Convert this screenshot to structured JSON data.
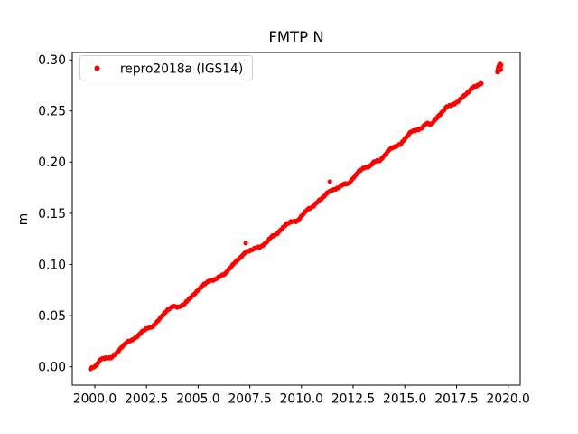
{
  "figure": {
    "background": "#ffffff",
    "text_color": "#000000"
  },
  "chart_data": {
    "type": "scatter",
    "title": "FMTP N",
    "xlabel": "",
    "ylabel": "m",
    "grid": false,
    "xlim": [
      1998.908,
      2020.583
    ],
    "ylim": [
      -0.0179,
      0.3072
    ],
    "x_ticks": [
      2000.0,
      2002.5,
      2005.0,
      2007.5,
      2010.0,
      2012.5,
      2015.0,
      2017.5,
      2020.0
    ],
    "x_tick_labels": [
      "2000.0",
      "2002.5",
      "2005.0",
      "2007.5",
      "2010.0",
      "2012.5",
      "2015.0",
      "2017.5",
      "2020.0"
    ],
    "y_ticks": [
      0.0,
      0.05,
      0.1,
      0.15,
      0.2,
      0.25,
      0.3
    ],
    "y_tick_labels": [
      "0.00",
      "0.05",
      "0.10",
      "0.15",
      "0.20",
      "0.25",
      "0.30"
    ],
    "legend": {
      "position": "upper left"
    },
    "series": [
      {
        "name": "repro2018a (IGS14)",
        "color": "#ff0000",
        "marker": "dot",
        "points": [
          [
            1999.79,
            -0.002
          ],
          [
            2000.04,
            0.001
          ],
          [
            2000.29,
            0.0073
          ],
          [
            2000.54,
            0.009
          ],
          [
            2000.79,
            0.0087
          ],
          [
            2001.04,
            0.0133
          ],
          [
            2001.29,
            0.019
          ],
          [
            2001.54,
            0.0237
          ],
          [
            2001.79,
            0.0264
          ],
          [
            2002.04,
            0.0291
          ],
          [
            2002.29,
            0.0348
          ],
          [
            2002.54,
            0.0375
          ],
          [
            2002.79,
            0.0392
          ],
          [
            2003.04,
            0.0448
          ],
          [
            2003.29,
            0.0505
          ],
          [
            2003.54,
            0.0562
          ],
          [
            2003.79,
            0.0589
          ],
          [
            2004.04,
            0.0586
          ],
          [
            2004.29,
            0.0603
          ],
          [
            2004.54,
            0.066
          ],
          [
            2004.79,
            0.0707
          ],
          [
            2005.04,
            0.0754
          ],
          [
            2005.29,
            0.081
          ],
          [
            2005.54,
            0.0837
          ],
          [
            2005.79,
            0.0854
          ],
          [
            2006.04,
            0.0881
          ],
          [
            2006.29,
            0.0908
          ],
          [
            2006.54,
            0.0965
          ],
          [
            2006.79,
            0.1022
          ],
          [
            2007.04,
            0.1069
          ],
          [
            2007.29,
            0.1116
          ],
          [
            2007.54,
            0.1142
          ],
          [
            2007.79,
            0.1159
          ],
          [
            2008.04,
            0.1176
          ],
          [
            2008.29,
            0.1213
          ],
          [
            2008.54,
            0.127
          ],
          [
            2008.79,
            0.1297
          ],
          [
            2009.04,
            0.1344
          ],
          [
            2009.29,
            0.1401
          ],
          [
            2009.54,
            0.1417
          ],
          [
            2009.79,
            0.1424
          ],
          [
            2010.04,
            0.1481
          ],
          [
            2010.29,
            0.1538
          ],
          [
            2010.54,
            0.1565
          ],
          [
            2010.79,
            0.1612
          ],
          [
            2011.04,
            0.1659
          ],
          [
            2011.29,
            0.1705
          ],
          [
            2011.54,
            0.1732
          ],
          [
            2011.79,
            0.1749
          ],
          [
            2012.04,
            0.1786
          ],
          [
            2012.29,
            0.1793
          ],
          [
            2012.54,
            0.185
          ],
          [
            2012.79,
            0.1917
          ],
          [
            2013.04,
            0.1943
          ],
          [
            2013.29,
            0.196
          ],
          [
            2013.54,
            0.2007
          ],
          [
            2013.79,
            0.2014
          ],
          [
            2014.04,
            0.2071
          ],
          [
            2014.29,
            0.2128
          ],
          [
            2014.54,
            0.2155
          ],
          [
            2014.79,
            0.2172
          ],
          [
            2015.04,
            0.2238
          ],
          [
            2015.29,
            0.2295
          ],
          [
            2015.54,
            0.2312
          ],
          [
            2015.79,
            0.2329
          ],
          [
            2016.04,
            0.2376
          ],
          [
            2016.29,
            0.2373
          ],
          [
            2016.54,
            0.243
          ],
          [
            2016.79,
            0.2487
          ],
          [
            2017.04,
            0.2543
          ],
          [
            2017.29,
            0.256
          ],
          [
            2017.54,
            0.2587
          ],
          [
            2017.79,
            0.2634
          ],
          [
            2018.04,
            0.2681
          ],
          [
            2018.29,
            0.2728
          ],
          [
            2018.54,
            0.2755
          ],
          [
            2018.7,
            0.2768
          ]
        ],
        "outliers": [
          [
            2007.3,
            0.121
          ],
          [
            2011.37,
            0.181
          ]
        ],
        "detached_cluster": [
          [
            2019.48,
            0.288
          ],
          [
            2019.5,
            0.29
          ],
          [
            2019.52,
            0.2925
          ],
          [
            2019.54,
            0.289
          ],
          [
            2019.56,
            0.2945
          ],
          [
            2019.58,
            0.2915
          ],
          [
            2019.6,
            0.296
          ],
          [
            2019.62,
            0.293
          ],
          [
            2019.64,
            0.2905
          ],
          [
            2019.66,
            0.295
          ]
        ]
      }
    ]
  }
}
